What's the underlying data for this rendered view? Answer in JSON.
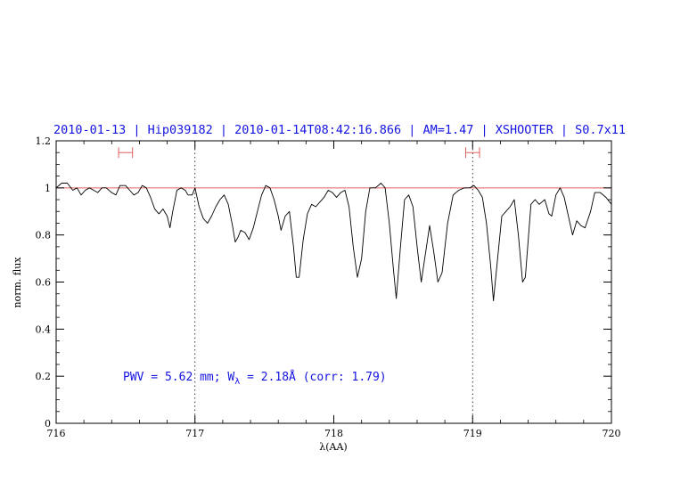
{
  "chart_data": {
    "type": "line",
    "title": "2010-01-13 | Hip039182 | 2010-01-14T08:42:16.866 | AM=1.47 | XSHOOTER | S0.7x11",
    "xlabel": "λ(AA)",
    "ylabel": "norm. flux",
    "xlim": [
      716,
      720
    ],
    "ylim": [
      0,
      1.2
    ],
    "x_ticks": [
      "716",
      "717",
      "718",
      "719",
      "720"
    ],
    "y_ticks": [
      "0",
      "0.2",
      "0.4",
      "0.6",
      "0.8",
      "1",
      "1.2"
    ],
    "grid": false,
    "reference_line": {
      "y": 1.0,
      "color": "#e06060"
    },
    "vertical_markers": [
      717.0,
      719.0
    ],
    "ranges": [
      {
        "x1": 716.45,
        "x2": 716.55,
        "y": 1.15,
        "color": "#e06060"
      },
      {
        "x1": 718.95,
        "x2": 719.05,
        "y": 1.15,
        "color": "#e06060"
      }
    ],
    "annotation": {
      "prefix": "PWV = 5.62 mm; W",
      "subscript": "λ",
      "suffix": " = 2.18Å (corr: 1.79)"
    },
    "series": [
      {
        "color": "#000000",
        "points": [
          [
            716.0,
            1.0
          ],
          [
            716.04,
            1.02
          ],
          [
            716.08,
            1.02
          ],
          [
            716.12,
            0.99
          ],
          [
            716.15,
            1.0
          ],
          [
            716.18,
            0.97
          ],
          [
            716.21,
            0.99
          ],
          [
            716.24,
            1.0
          ],
          [
            716.27,
            0.99
          ],
          [
            716.3,
            0.98
          ],
          [
            716.33,
            1.0
          ],
          [
            716.36,
            1.0
          ],
          [
            716.4,
            0.98
          ],
          [
            716.43,
            0.97
          ],
          [
            716.46,
            1.01
          ],
          [
            716.5,
            1.01
          ],
          [
            716.53,
            0.99
          ],
          [
            716.56,
            0.97
          ],
          [
            716.59,
            0.98
          ],
          [
            716.62,
            1.01
          ],
          [
            716.65,
            1.0
          ],
          [
            716.68,
            0.96
          ],
          [
            716.71,
            0.91
          ],
          [
            716.74,
            0.89
          ],
          [
            716.77,
            0.91
          ],
          [
            716.8,
            0.88
          ],
          [
            716.82,
            0.83
          ],
          [
            716.84,
            0.9
          ],
          [
            716.87,
            0.99
          ],
          [
            716.9,
            1.0
          ],
          [
            716.93,
            0.99
          ],
          [
            716.95,
            0.97
          ],
          [
            716.98,
            0.97
          ],
          [
            717.0,
            1.0
          ],
          [
            717.03,
            0.92
          ],
          [
            717.06,
            0.87
          ],
          [
            717.09,
            0.85
          ],
          [
            717.12,
            0.88
          ],
          [
            717.15,
            0.92
          ],
          [
            717.18,
            0.95
          ],
          [
            717.21,
            0.97
          ],
          [
            717.24,
            0.93
          ],
          [
            717.27,
            0.84
          ],
          [
            717.29,
            0.77
          ],
          [
            717.31,
            0.79
          ],
          [
            717.33,
            0.82
          ],
          [
            717.36,
            0.81
          ],
          [
            717.39,
            0.78
          ],
          [
            717.42,
            0.83
          ],
          [
            717.45,
            0.9
          ],
          [
            717.48,
            0.97
          ],
          [
            717.51,
            1.01
          ],
          [
            717.54,
            1.0
          ],
          [
            717.57,
            0.95
          ],
          [
            717.6,
            0.88
          ],
          [
            717.62,
            0.82
          ],
          [
            717.65,
            0.88
          ],
          [
            717.68,
            0.9
          ],
          [
            717.71,
            0.75
          ],
          [
            717.73,
            0.62
          ],
          [
            717.75,
            0.62
          ],
          [
            717.78,
            0.78
          ],
          [
            717.81,
            0.89
          ],
          [
            717.84,
            0.93
          ],
          [
            717.87,
            0.92
          ],
          [
            717.9,
            0.94
          ],
          [
            717.93,
            0.96
          ],
          [
            717.96,
            0.99
          ],
          [
            717.99,
            0.98
          ],
          [
            718.02,
            0.96
          ],
          [
            718.05,
            0.98
          ],
          [
            718.08,
            0.99
          ],
          [
            718.11,
            0.92
          ],
          [
            718.14,
            0.75
          ],
          [
            718.17,
            0.62
          ],
          [
            718.2,
            0.7
          ],
          [
            718.23,
            0.9
          ],
          [
            718.26,
            1.0
          ],
          [
            718.3,
            1.0
          ],
          [
            718.34,
            1.02
          ],
          [
            718.37,
            1.0
          ],
          [
            718.4,
            0.85
          ],
          [
            718.43,
            0.65
          ],
          [
            718.45,
            0.53
          ],
          [
            718.48,
            0.75
          ],
          [
            718.51,
            0.95
          ],
          [
            718.54,
            0.97
          ],
          [
            718.57,
            0.92
          ],
          [
            718.6,
            0.75
          ],
          [
            718.63,
            0.6
          ],
          [
            718.66,
            0.72
          ],
          [
            718.69,
            0.84
          ],
          [
            718.72,
            0.73
          ],
          [
            718.75,
            0.6
          ],
          [
            718.78,
            0.64
          ],
          [
            718.82,
            0.85
          ],
          [
            718.86,
            0.97
          ],
          [
            718.9,
            0.99
          ],
          [
            718.94,
            1.0
          ],
          [
            718.98,
            1.0
          ],
          [
            719.01,
            1.01
          ],
          [
            719.04,
            0.99
          ],
          [
            719.07,
            0.96
          ],
          [
            719.1,
            0.85
          ],
          [
            719.13,
            0.67
          ],
          [
            719.15,
            0.52
          ],
          [
            719.18,
            0.7
          ],
          [
            719.21,
            0.88
          ],
          [
            719.24,
            0.9
          ],
          [
            719.27,
            0.92
          ],
          [
            719.3,
            0.95
          ],
          [
            719.33,
            0.8
          ],
          [
            719.36,
            0.6
          ],
          [
            719.38,
            0.62
          ],
          [
            719.42,
            0.93
          ],
          [
            719.45,
            0.95
          ],
          [
            719.48,
            0.93
          ],
          [
            719.52,
            0.95
          ],
          [
            719.55,
            0.89
          ],
          [
            719.57,
            0.88
          ],
          [
            719.6,
            0.97
          ],
          [
            719.63,
            1.0
          ],
          [
            719.66,
            0.96
          ],
          [
            719.69,
            0.88
          ],
          [
            719.72,
            0.8
          ],
          [
            719.75,
            0.86
          ],
          [
            719.78,
            0.84
          ],
          [
            719.81,
            0.83
          ],
          [
            719.85,
            0.9
          ],
          [
            719.88,
            0.98
          ],
          [
            719.92,
            0.98
          ],
          [
            719.96,
            0.96
          ],
          [
            720.0,
            0.93
          ]
        ]
      }
    ]
  }
}
